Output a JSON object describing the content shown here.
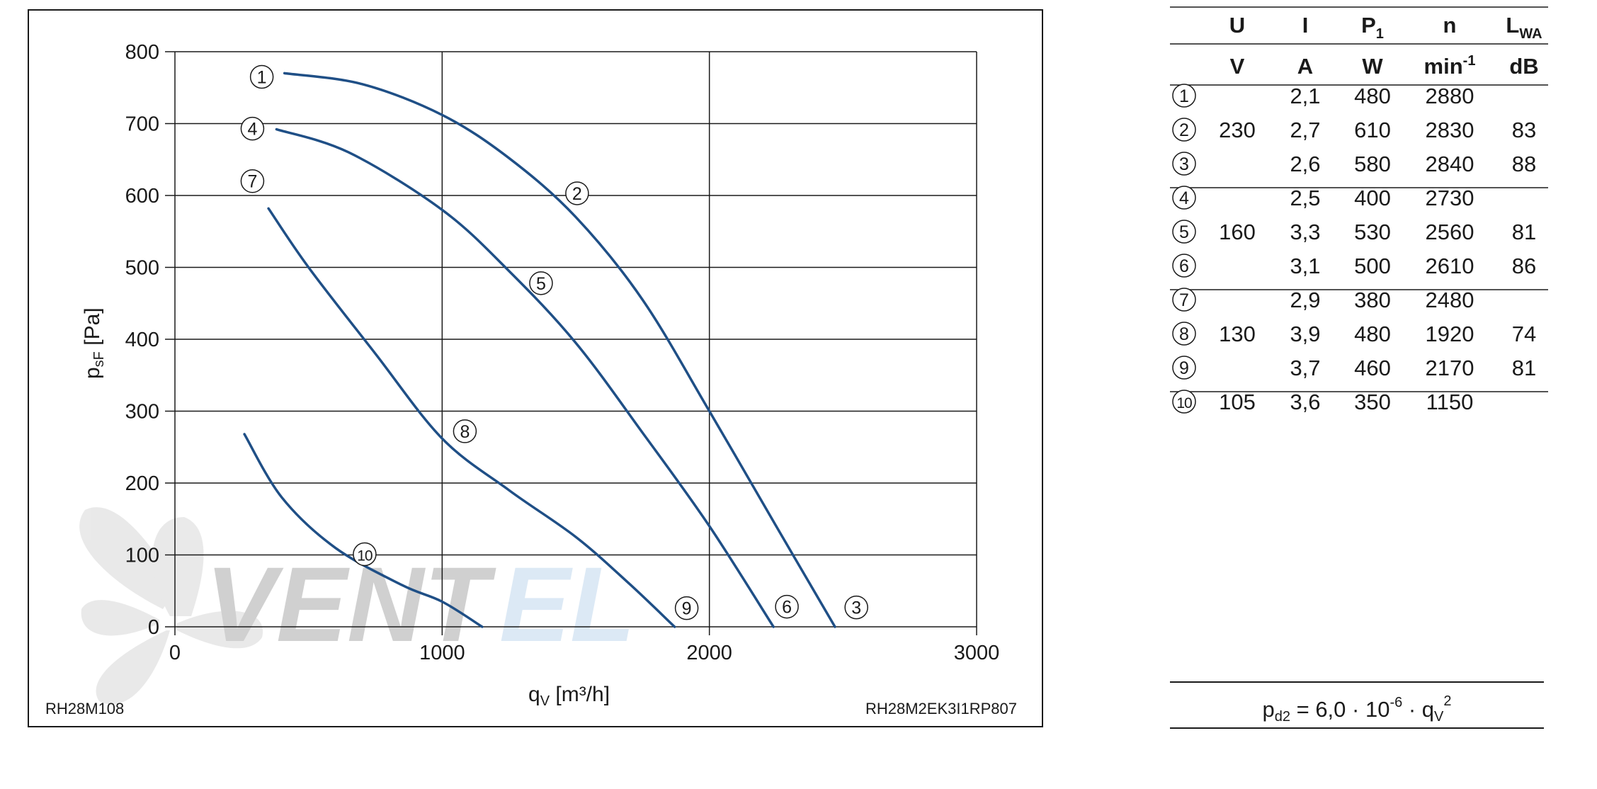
{
  "chart_data": {
    "type": "line",
    "xlabel_main": "q",
    "xlabel_sub": "V",
    "xlabel_unit": " [m³/h]",
    "ylabel_main": "p",
    "ylabel_sub": "sF",
    "ylabel_unit": " [Pa]",
    "xlim": [
      0,
      3000
    ],
    "ylim": [
      0,
      800
    ],
    "xticks": [
      0,
      1000,
      2000,
      3000
    ],
    "yticks": [
      0,
      100,
      200,
      300,
      400,
      500,
      600,
      700,
      800
    ],
    "grid": true,
    "line_color": "#1f4f86",
    "series": [
      {
        "points": [
          [
            410,
            770
          ],
          [
            700,
            755
          ],
          [
            1000,
            712
          ],
          [
            1250,
            652
          ],
          [
            1500,
            570
          ],
          [
            1750,
            455
          ],
          [
            2000,
            300
          ],
          [
            2250,
            140
          ],
          [
            2470,
            0
          ]
        ]
      },
      {
        "points": [
          [
            380,
            692
          ],
          [
            650,
            660
          ],
          [
            1000,
            580
          ],
          [
            1250,
            495
          ],
          [
            1500,
            395
          ],
          [
            1750,
            270
          ],
          [
            2000,
            140
          ],
          [
            2240,
            0
          ]
        ]
      },
      {
        "points": [
          [
            350,
            582
          ],
          [
            500,
            500
          ],
          [
            750,
            380
          ],
          [
            1000,
            262
          ],
          [
            1250,
            190
          ],
          [
            1500,
            125
          ],
          [
            1700,
            60
          ],
          [
            1870,
            0
          ]
        ]
      },
      {
        "points": [
          [
            260,
            268
          ],
          [
            400,
            180
          ],
          [
            600,
            110
          ],
          [
            850,
            58
          ],
          [
            1000,
            35
          ],
          [
            1150,
            0
          ]
        ]
      }
    ],
    "curve_labels": [
      {
        "text": "1",
        "x": 325,
        "y": 765
      },
      {
        "text": "4",
        "x": 290,
        "y": 693
      },
      {
        "text": "7",
        "x": 290,
        "y": 620
      },
      {
        "text": "2",
        "x": 1505,
        "y": 603
      },
      {
        "text": "5",
        "x": 1370,
        "y": 478
      },
      {
        "text": "8",
        "x": 1085,
        "y": 272
      },
      {
        "text": "10",
        "x": 710,
        "y": 101
      },
      {
        "text": "9",
        "x": 1915,
        "y": 26
      },
      {
        "text": "6",
        "x": 2290,
        "y": 28
      },
      {
        "text": "3",
        "x": 2550,
        "y": 27
      }
    ]
  },
  "footer": {
    "left_code": "RH28M108",
    "right_code": "RH28M2EK3I1RP807"
  },
  "table": {
    "headers": [
      {
        "main": "U",
        "sub": ""
      },
      {
        "main": "I",
        "sub": ""
      },
      {
        "main": "P",
        "sub": "1"
      },
      {
        "main": "n",
        "sub": ""
      },
      {
        "main": "L",
        "sub": "WA"
      }
    ],
    "units": [
      {
        "main": "V",
        "sup": ""
      },
      {
        "main": "A",
        "sup": ""
      },
      {
        "main": "W",
        "sup": ""
      },
      {
        "main": "min",
        "sup": "-1"
      },
      {
        "main": "dB",
        "sup": ""
      }
    ],
    "rows": [
      {
        "num": "1",
        "U": "",
        "I": "2,1",
        "P": "480",
        "n": "2880",
        "L": ""
      },
      {
        "num": "2",
        "U": "230",
        "I": "2,7",
        "P": "610",
        "n": "2830",
        "L": "83"
      },
      {
        "num": "3",
        "U": "",
        "I": "2,6",
        "P": "580",
        "n": "2840",
        "L": "88"
      },
      {
        "num": "4",
        "U": "",
        "I": "2,5",
        "P": "400",
        "n": "2730",
        "L": ""
      },
      {
        "num": "5",
        "U": "160",
        "I": "3,3",
        "P": "530",
        "n": "2560",
        "L": "81"
      },
      {
        "num": "6",
        "U": "",
        "I": "3,1",
        "P": "500",
        "n": "2610",
        "L": "86"
      },
      {
        "num": "7",
        "U": "",
        "I": "2,9",
        "P": "380",
        "n": "2480",
        "L": ""
      },
      {
        "num": "8",
        "U": "130",
        "I": "3,9",
        "P": "480",
        "n": "1920",
        "L": "74"
      },
      {
        "num": "9",
        "U": "",
        "I": "3,7",
        "P": "460",
        "n": "2170",
        "L": "81"
      },
      {
        "num": "10",
        "U": "105",
        "I": "3,6",
        "P": "350",
        "n": "1150",
        "L": ""
      }
    ]
  },
  "formula": {
    "lhs_main": "p",
    "lhs_sub": "d2",
    "mid": " = 6,0 · 10",
    "exp": "-6",
    "dot": " · q",
    "q_sub": "V",
    "q_sup": "2"
  },
  "watermark": {
    "text_dark": "VENT",
    "text_light": "EL",
    "color_dark": "#c8c8c8",
    "color_light": "#d6e6f4"
  }
}
